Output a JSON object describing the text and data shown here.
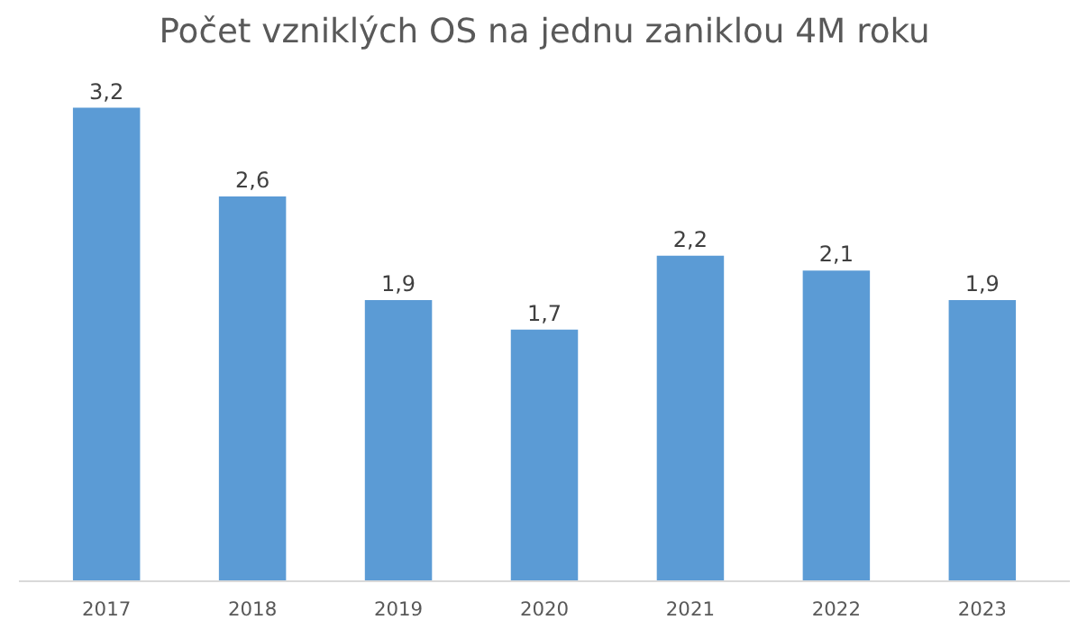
{
  "chart_data": {
    "type": "bar",
    "title": "Počet vzniklých OS na jednu zaniklou 4M roku",
    "categories": [
      "2017",
      "2018",
      "2019",
      "2020",
      "2021",
      "2022",
      "2023"
    ],
    "values": [
      3.2,
      2.6,
      1.9,
      1.7,
      2.2,
      2.1,
      1.9
    ],
    "value_labels": [
      "3,2",
      "2,6",
      "1,9",
      "1,7",
      "2,2",
      "2,1",
      "1,9"
    ],
    "color": "#5b9bd5",
    "grid": false
  }
}
